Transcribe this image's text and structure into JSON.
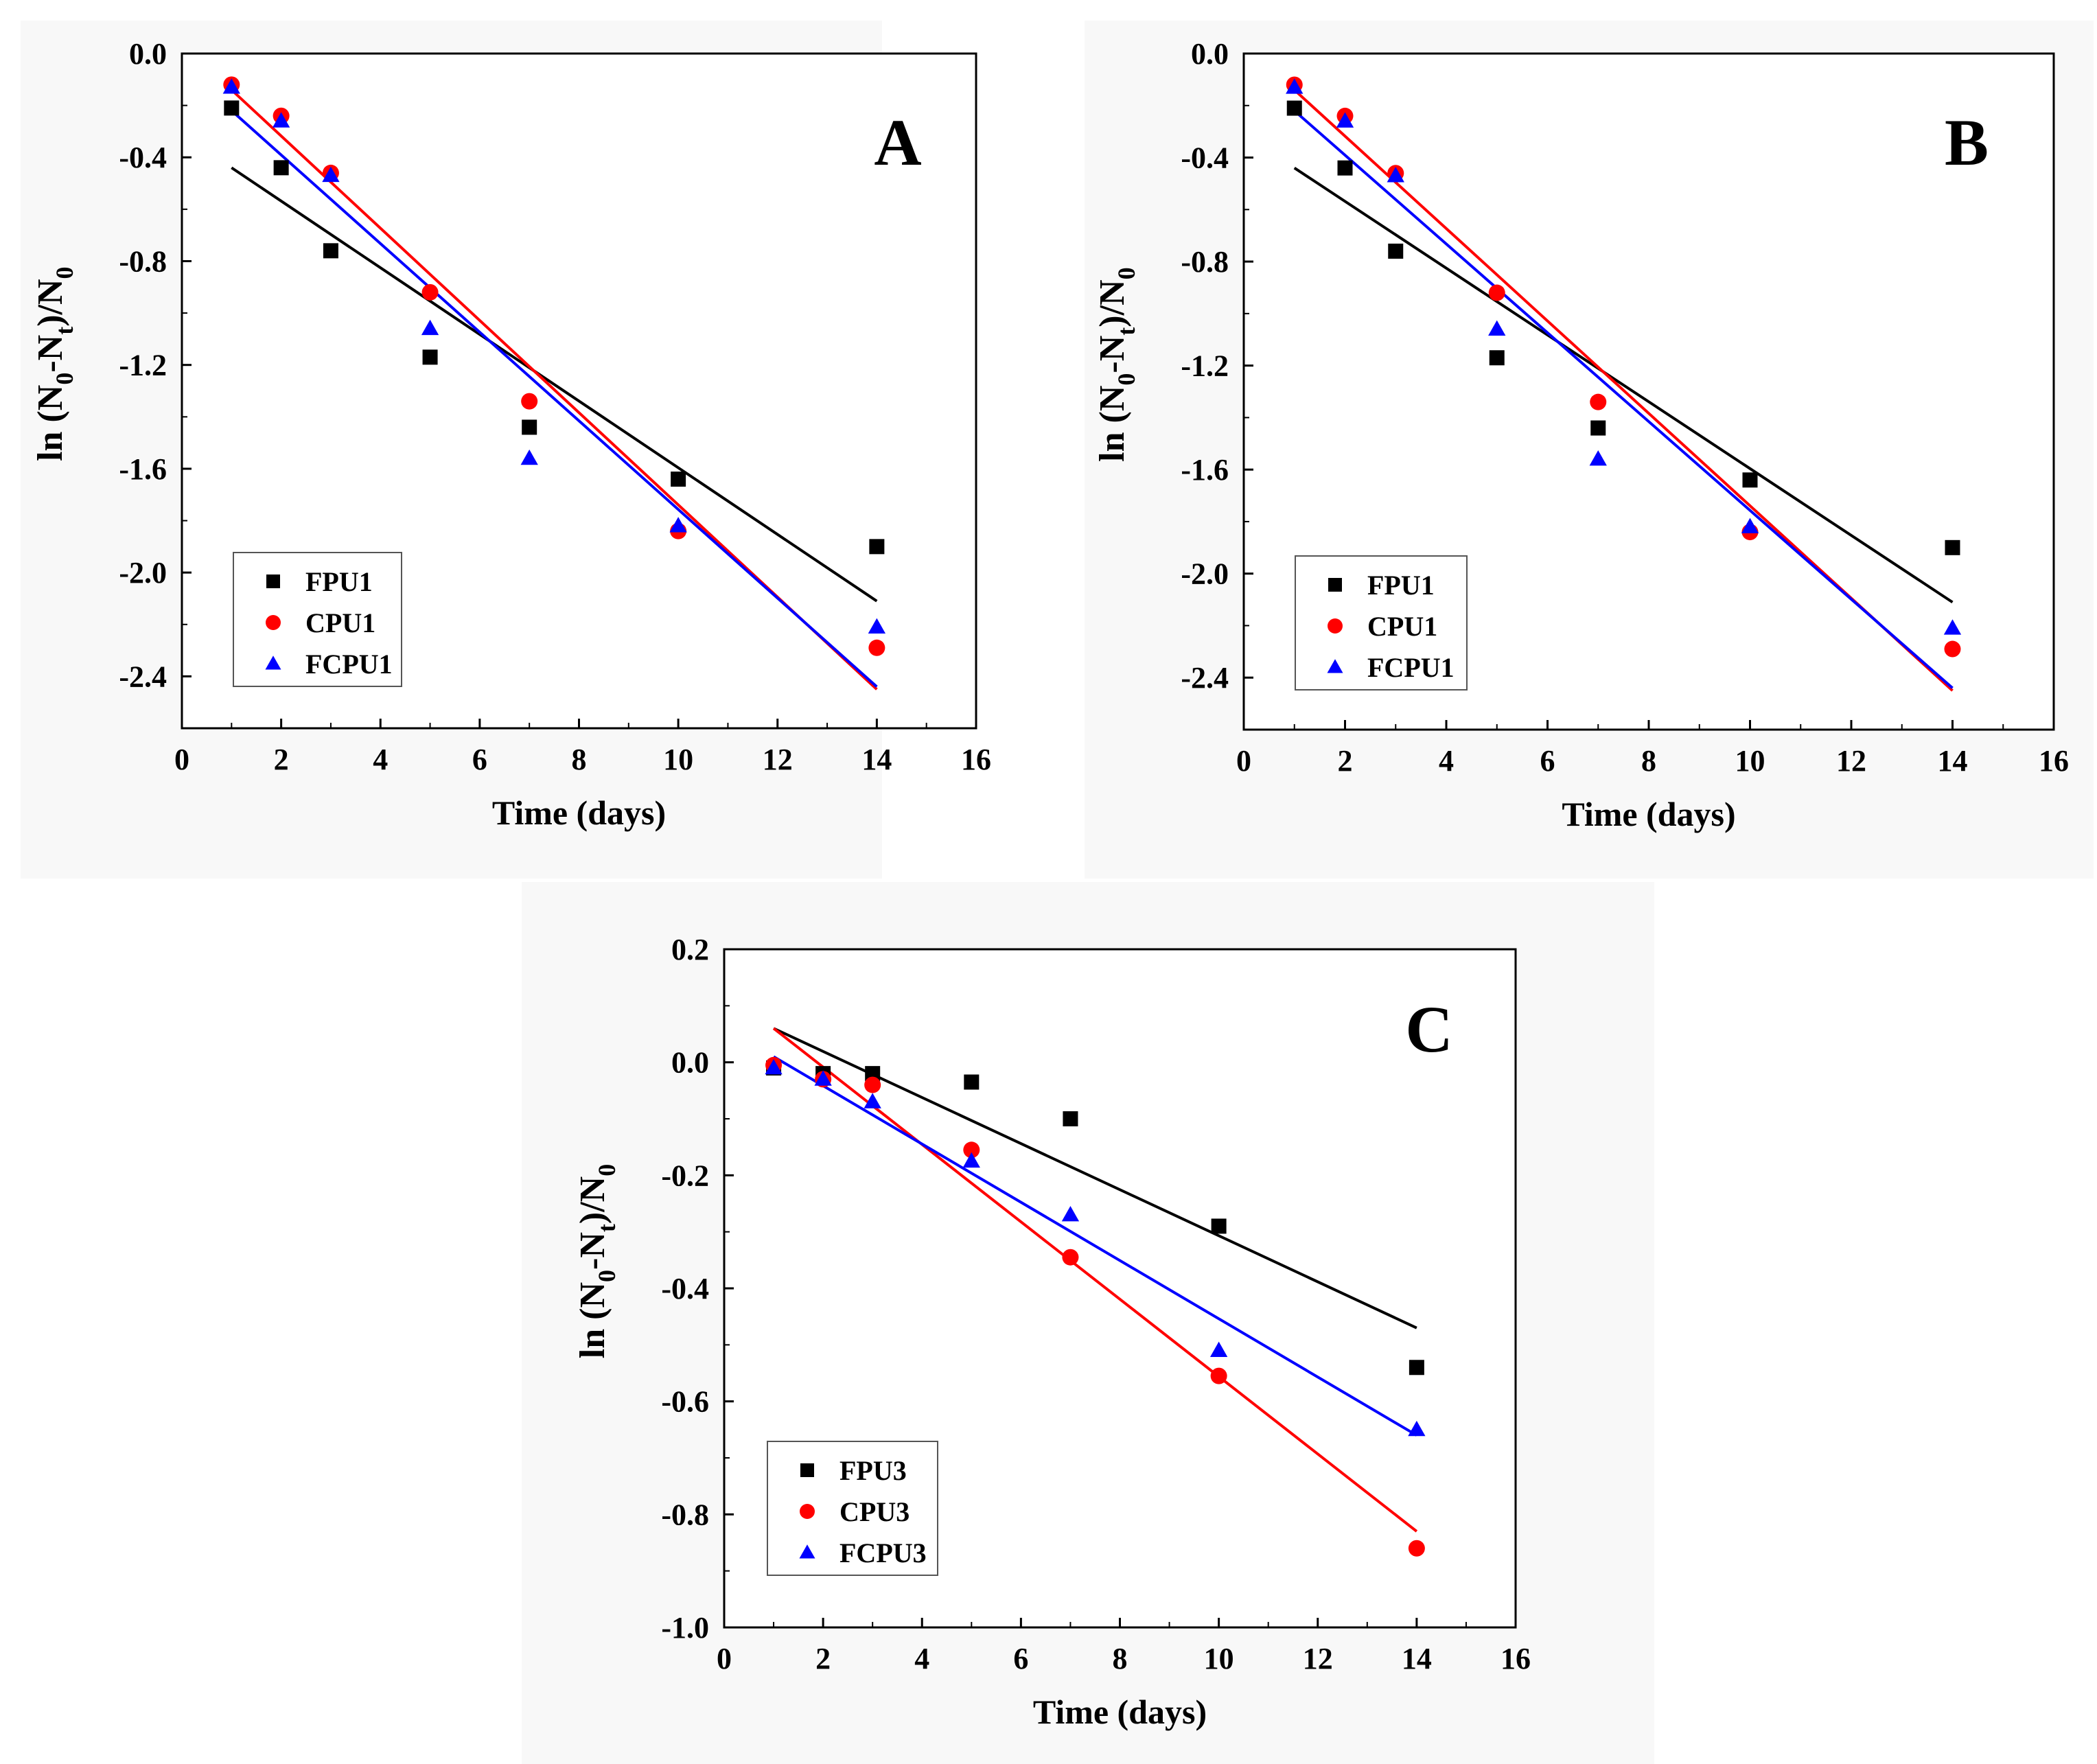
{
  "chart_data": [
    {
      "panel": "A",
      "type": "scatter",
      "title": "A",
      "xlabel": "Time (days)",
      "ylabel": "ln (N0-Nt)/N0",
      "xlim": [
        0,
        16
      ],
      "ylim": [
        -2.6,
        0.0
      ],
      "xticks": [
        0,
        2,
        4,
        6,
        8,
        10,
        12,
        14,
        16
      ],
      "yticks": [
        0.0,
        -0.4,
        -0.8,
        -1.2,
        -1.6,
        -2.0,
        -2.4
      ],
      "ytick_labels": [
        "0.0",
        "-0.4",
        "-0.8",
        "-1.2",
        "-1.6",
        "-2.0",
        "-2.4"
      ],
      "grid": false,
      "legend": "bottom-left",
      "series": [
        {
          "name": "FPU1",
          "marker": "square",
          "color": "#000000",
          "x": [
            1,
            2,
            3,
            5,
            7,
            10,
            14
          ],
          "y": [
            -0.21,
            -0.44,
            -0.76,
            -1.17,
            -1.44,
            -1.64,
            -1.9
          ],
          "fit": {
            "x": [
              1,
              14
            ],
            "y": [
              -0.44,
              -2.11
            ]
          }
        },
        {
          "name": "CPU1",
          "marker": "circle",
          "color": "#ff0000",
          "x": [
            1,
            2,
            3,
            5,
            7,
            10,
            14
          ],
          "y": [
            -0.12,
            -0.24,
            -0.46,
            -0.92,
            -1.34,
            -1.84,
            -2.29
          ],
          "fit": {
            "x": [
              1,
              14
            ],
            "y": [
              -0.14,
              -2.45
            ]
          }
        },
        {
          "name": "FCPU1",
          "marker": "triangle",
          "color": "#0000ff",
          "x": [
            1,
            2,
            3,
            5,
            7,
            10,
            14
          ],
          "y": [
            -0.13,
            -0.26,
            -0.47,
            -1.06,
            -1.56,
            -1.82,
            -2.21
          ],
          "fit": {
            "x": [
              1,
              14
            ],
            "y": [
              -0.22,
              -2.44
            ]
          }
        }
      ]
    },
    {
      "panel": "B",
      "type": "scatter",
      "title": "B",
      "xlabel": "Time (days)",
      "ylabel": "ln (N0-Nt)/N0",
      "xlim": [
        0,
        16
      ],
      "ylim": [
        -2.6,
        0.0
      ],
      "xticks": [
        0,
        2,
        4,
        6,
        8,
        10,
        12,
        14,
        16
      ],
      "yticks": [
        0.0,
        -0.4,
        -0.8,
        -1.2,
        -1.6,
        -2.0,
        -2.4
      ],
      "ytick_labels": [
        "0.0",
        "-0.4",
        "-0.8",
        "-1.2",
        "-1.6",
        "-2.0",
        "-2.4"
      ],
      "grid": false,
      "legend": "bottom-left",
      "series": [
        {
          "name": "FPU1",
          "marker": "square",
          "color": "#000000",
          "x": [
            1,
            2,
            3,
            5,
            7,
            10,
            14
          ],
          "y": [
            -0.21,
            -0.44,
            -0.76,
            -1.17,
            -1.44,
            -1.64,
            -1.9
          ],
          "fit": {
            "x": [
              1,
              14
            ],
            "y": [
              -0.44,
              -2.11
            ]
          }
        },
        {
          "name": "CPU1",
          "marker": "circle",
          "color": "#ff0000",
          "x": [
            1,
            2,
            3,
            5,
            7,
            10,
            14
          ],
          "y": [
            -0.12,
            -0.24,
            -0.46,
            -0.92,
            -1.34,
            -1.84,
            -2.29
          ],
          "fit": {
            "x": [
              1,
              14
            ],
            "y": [
              -0.14,
              -2.45
            ]
          }
        },
        {
          "name": "FCPU1",
          "marker": "triangle",
          "color": "#0000ff",
          "x": [
            1,
            2,
            3,
            5,
            7,
            10,
            14
          ],
          "y": [
            -0.13,
            -0.26,
            -0.47,
            -1.06,
            -1.56,
            -1.82,
            -2.21
          ],
          "fit": {
            "x": [
              1,
              14
            ],
            "y": [
              -0.22,
              -2.44
            ]
          }
        }
      ]
    },
    {
      "panel": "C",
      "type": "scatter",
      "title": "C",
      "xlabel": "Time (days)",
      "ylabel": "ln (N0-Nt)/N0",
      "xlim": [
        0,
        16
      ],
      "ylim": [
        -1.0,
        0.2
      ],
      "xticks": [
        0,
        2,
        4,
        6,
        8,
        10,
        12,
        14,
        16
      ],
      "yticks": [
        0.2,
        0.0,
        -0.2,
        -0.4,
        -0.6,
        -0.8,
        -1.0
      ],
      "ytick_labels": [
        "0.2",
        "0.0",
        "-0.2",
        "-0.4",
        "-0.6",
        "-0.8",
        "-1.0"
      ],
      "grid": false,
      "legend": "bottom-left",
      "series": [
        {
          "name": "FPU3",
          "marker": "square",
          "color": "#000000",
          "x": [
            1,
            2,
            3,
            5,
            7,
            10,
            14
          ],
          "y": [
            -0.01,
            -0.02,
            -0.02,
            -0.035,
            -0.1,
            -0.29,
            -0.54
          ],
          "fit": {
            "x": [
              1,
              14
            ],
            "y": [
              0.06,
              -0.47
            ]
          }
        },
        {
          "name": "CPU3",
          "marker": "circle",
          "color": "#ff0000",
          "x": [
            1,
            2,
            3,
            5,
            7,
            10,
            14
          ],
          "y": [
            -0.005,
            -0.03,
            -0.04,
            -0.155,
            -0.345,
            -0.555,
            -0.86
          ],
          "fit": {
            "x": [
              1,
              14
            ],
            "y": [
              0.06,
              -0.83
            ]
          }
        },
        {
          "name": "FCPU3",
          "marker": "triangle",
          "color": "#0000ff",
          "x": [
            1,
            2,
            3,
            5,
            7,
            10,
            14
          ],
          "y": [
            -0.01,
            -0.03,
            -0.07,
            -0.175,
            -0.27,
            -0.51,
            -0.65
          ],
          "fit": {
            "x": [
              1,
              14
            ],
            "y": [
              0.01,
              -0.66
            ]
          }
        }
      ]
    }
  ]
}
